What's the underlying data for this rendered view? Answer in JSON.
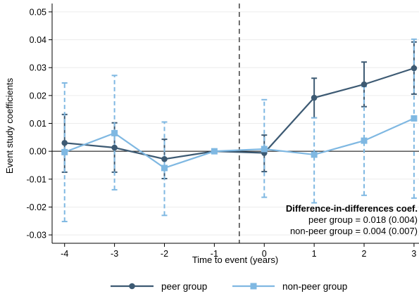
{
  "chart_data": {
    "type": "line",
    "xlabel": "Time to event (years)",
    "ylabel": "Event study coefficients",
    "x": [
      -4,
      -3,
      -2,
      -1,
      0,
      1,
      2,
      3
    ],
    "x_tick_labels": [
      "-4",
      "-3",
      "-2",
      "-1",
      "0",
      "1",
      "2",
      "3"
    ],
    "xlim": [
      -4.25,
      3.1
    ],
    "ylim": [
      -0.033,
      0.053
    ],
    "y_ticks": [
      -0.03,
      -0.02,
      -0.01,
      0,
      0.01,
      0.02,
      0.03,
      0.04,
      0.05
    ],
    "y_tick_labels": [
      "-0.03",
      "-0.02",
      "-0.01",
      "0.00",
      "0.01",
      "0.02",
      "0.03",
      "0.04",
      "0.05"
    ],
    "reference_line_y": 0,
    "event_line_x": -0.5,
    "grid": true,
    "series": [
      {
        "name": "peer group",
        "color": "#3d5a73",
        "marker": "circle",
        "ci_style": "solid",
        "values": [
          0.003,
          0.0013,
          -0.0028,
          0,
          -0.0006,
          0.0192,
          0.024,
          0.0298
        ],
        "ci_low": [
          -0.0075,
          -0.0075,
          -0.0098,
          0,
          -0.0073,
          0.012,
          0.016,
          0.0205
        ],
        "ci_high": [
          0.0132,
          0.0102,
          0.0043,
          0,
          0.0058,
          0.0262,
          0.032,
          0.0392
        ]
      },
      {
        "name": "non-peer group",
        "color": "#7fb8e2",
        "marker": "square",
        "ci_style": "dashed",
        "values": [
          -0.0003,
          0.0065,
          -0.006,
          0,
          0.0008,
          -0.0012,
          0.0038,
          0.0118
        ],
        "ci_low": [
          -0.0252,
          -0.0138,
          -0.023,
          0,
          -0.0165,
          -0.0185,
          -0.0158,
          -0.0168
        ],
        "ci_high": [
          0.0245,
          0.0272,
          0.0105,
          0,
          0.0185,
          0.012,
          0.0232,
          0.0402
        ]
      }
    ],
    "annotation": {
      "title": "Difference-in-differences coef.",
      "lines": [
        "peer group = 0.018 (0.004)",
        "non-peer group = 0.004 (0.007)"
      ]
    },
    "legend": {
      "position": "bottom"
    }
  }
}
